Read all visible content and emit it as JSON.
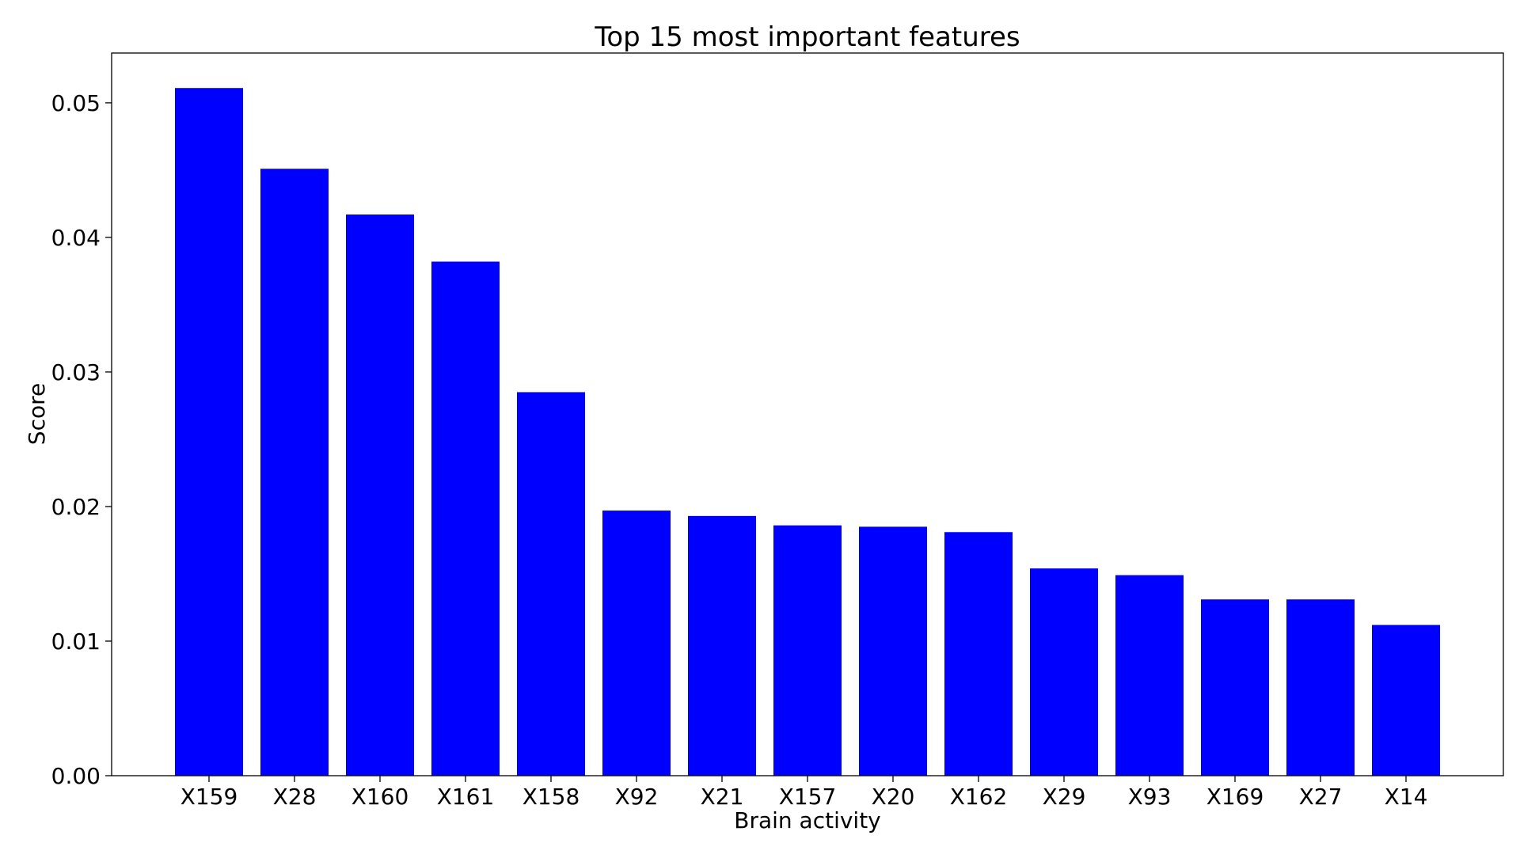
{
  "chart_data": {
    "type": "bar",
    "title": "Top 15 most important features",
    "xlabel": "Brain activity",
    "ylabel": "Score",
    "categories": [
      "X159",
      "X28",
      "X160",
      "X161",
      "X158",
      "X92",
      "X21",
      "X157",
      "X20",
      "X162",
      "X29",
      "X93",
      "X169",
      "X27",
      "X14"
    ],
    "values": [
      0.0511,
      0.0451,
      0.0417,
      0.0382,
      0.0285,
      0.0197,
      0.0193,
      0.0186,
      0.0185,
      0.0181,
      0.0154,
      0.0149,
      0.0131,
      0.0131,
      0.0112
    ],
    "ylim": [
      0,
      0.0537
    ],
    "yticks": [
      "0.00",
      "0.01",
      "0.02",
      "0.03",
      "0.04",
      "0.05"
    ],
    "bar_color": "#0000ff",
    "grid": false,
    "legend": "none"
  }
}
